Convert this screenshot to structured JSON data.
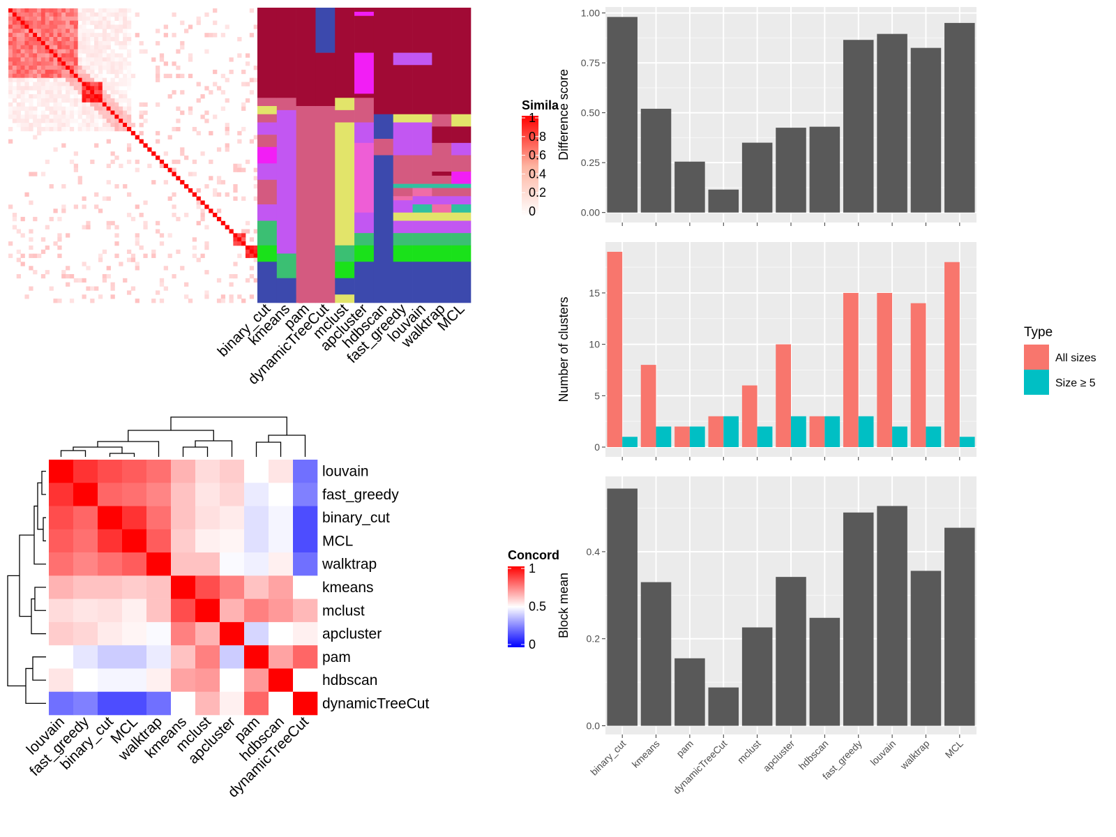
{
  "chart_data": [
    {
      "type": "heatmap",
      "id": "similarity",
      "legend": {
        "title": "Simila",
        "ticks": [
          "1",
          "0.8",
          "0.6",
          "0.4",
          "0.2",
          "0"
        ],
        "colors": [
          "#ffffff",
          "#ff0000"
        ]
      },
      "n_items": 72,
      "blocks": [
        [
          0,
          16
        ],
        [
          18,
          22
        ],
        [
          55,
          57
        ],
        [
          58,
          60
        ],
        [
          61,
          63
        ]
      ]
    },
    {
      "type": "heatmap",
      "id": "class-assignments",
      "methods": [
        "binary_cut",
        "kmeans",
        "pam",
        "dynamicTreeCut",
        "mclust",
        "apcluster",
        "hdbscan",
        "fast_greedy",
        "louvain",
        "walktrap",
        "MCL"
      ],
      "n_items": 72,
      "columns": [
        {
          "segments": [
            [
              0,
              22,
              "#a10a35"
            ],
            [
              22,
              24,
              "#d45a80"
            ],
            [
              24,
              26,
              "#e2e46a"
            ],
            [
              26,
              28,
              "#d45a80"
            ],
            [
              28,
              31,
              "#c257f2"
            ],
            [
              31,
              34,
              "#d45a80"
            ],
            [
              34,
              38,
              "#f21ef5"
            ],
            [
              38,
              42,
              "#c257f2"
            ],
            [
              42,
              48,
              "#d45a80"
            ],
            [
              48,
              52,
              "#c257f2"
            ],
            [
              52,
              58,
              "#3bbf73"
            ],
            [
              58,
              62,
              "#1ae11a"
            ],
            [
              62,
              72,
              "#3c49ad"
            ]
          ]
        },
        {
          "segments": [
            [
              0,
              22,
              "#a10a35"
            ],
            [
              22,
              25,
              "#d45a80"
            ],
            [
              25,
              60,
              "#c257f2"
            ],
            [
              60,
              66,
              "#3bbf73"
            ],
            [
              66,
              72,
              "#3c49ad"
            ]
          ]
        },
        {
          "segments": [
            [
              0,
              24,
              "#a10a35"
            ],
            [
              24,
              72,
              "#d45a80"
            ]
          ]
        },
        {
          "segments": [
            [
              0,
              11,
              "#3c49ad"
            ],
            [
              11,
              24,
              "#a10a35"
            ],
            [
              24,
              72,
              "#d45a80"
            ]
          ]
        },
        {
          "segments": [
            [
              0,
              22,
              "#a10a35"
            ],
            [
              22,
              25,
              "#e2e46a"
            ],
            [
              25,
              28,
              "#d45a80"
            ],
            [
              28,
              58,
              "#e2e46a"
            ],
            [
              58,
              62,
              "#3bbf73"
            ],
            [
              62,
              66,
              "#1ae11a"
            ],
            [
              66,
              70,
              "#3c49ad"
            ],
            [
              70,
              72,
              "#e2e46a"
            ]
          ]
        },
        {
          "segments": [
            [
              0,
              1,
              "#a10a35"
            ],
            [
              1,
              2,
              "#f21ef5"
            ],
            [
              2,
              11,
              "#a10a35"
            ],
            [
              11,
              21,
              "#f21ef5"
            ],
            [
              21,
              22,
              "#a10a35"
            ],
            [
              22,
              28,
              "#d45a80"
            ],
            [
              28,
              33,
              "#c257f2"
            ],
            [
              33,
              40,
              "#ee5ed6"
            ],
            [
              40,
              50,
              "#ee5ed6"
            ],
            [
              50,
              55,
              "#c257f2"
            ],
            [
              55,
              58,
              "#3bbf73"
            ],
            [
              58,
              62,
              "#1ae11a"
            ],
            [
              62,
              72,
              "#3c49ad"
            ]
          ]
        },
        {
          "segments": [
            [
              0,
              26,
              "#a10a35"
            ],
            [
              26,
              32,
              "#3c49ad"
            ],
            [
              32,
              36,
              "#d45a80"
            ],
            [
              36,
              72,
              "#3c49ad"
            ]
          ]
        },
        {
          "segments": [
            [
              0,
              11,
              "#a10a35"
            ],
            [
              11,
              14,
              "#c257f2"
            ],
            [
              14,
              26,
              "#a10a35"
            ],
            [
              26,
              28,
              "#e2e46a"
            ],
            [
              28,
              36,
              "#c257f2"
            ],
            [
              36,
              43,
              "#d45a80"
            ],
            [
              43,
              44,
              "#30c0a0"
            ],
            [
              44,
              46,
              "#d45a80"
            ],
            [
              46,
              47,
              "#f06ca7"
            ],
            [
              47,
              50,
              "#c257f2"
            ],
            [
              50,
              52,
              "#e2e46a"
            ],
            [
              52,
              55,
              "#c257f2"
            ],
            [
              55,
              58,
              "#3bbf73"
            ],
            [
              58,
              62,
              "#1ae11a"
            ],
            [
              62,
              72,
              "#3c49ad"
            ]
          ]
        },
        {
          "segments": [
            [
              0,
              11,
              "#a10a35"
            ],
            [
              11,
              14,
              "#c257f2"
            ],
            [
              14,
              26,
              "#a10a35"
            ],
            [
              26,
              28,
              "#e2e46a"
            ],
            [
              28,
              36,
              "#c257f2"
            ],
            [
              36,
              43,
              "#d45a80"
            ],
            [
              43,
              44,
              "#30c0a0"
            ],
            [
              44,
              46,
              "#f06ca7"
            ],
            [
              46,
              48,
              "#c257f2"
            ],
            [
              48,
              50,
              "#30c0a0"
            ],
            [
              50,
              52,
              "#e2e46a"
            ],
            [
              52,
              55,
              "#c257f2"
            ],
            [
              55,
              58,
              "#3bbf73"
            ],
            [
              58,
              62,
              "#1ae11a"
            ],
            [
              62,
              72,
              "#3c49ad"
            ]
          ]
        },
        {
          "segments": [
            [
              0,
              26,
              "#a10a35"
            ],
            [
              26,
              29,
              "#d45a80"
            ],
            [
              29,
              33,
              "#a10a35"
            ],
            [
              33,
              40,
              "#d45a80"
            ],
            [
              40,
              41,
              "#a10a35"
            ],
            [
              41,
              43,
              "#d45a80"
            ],
            [
              43,
              44,
              "#30c0a0"
            ],
            [
              44,
              46,
              "#d45a80"
            ],
            [
              46,
              48,
              "#c257f2"
            ],
            [
              48,
              50,
              "#f06ca7"
            ],
            [
              50,
              52,
              "#e2e46a"
            ],
            [
              52,
              55,
              "#c257f2"
            ],
            [
              55,
              58,
              "#3bbf73"
            ],
            [
              58,
              62,
              "#1ae11a"
            ],
            [
              62,
              72,
              "#3c49ad"
            ]
          ]
        },
        {
          "segments": [
            [
              0,
              26,
              "#a10a35"
            ],
            [
              26,
              29,
              "#e2e46a"
            ],
            [
              29,
              33,
              "#a10a35"
            ],
            [
              33,
              36,
              "#c257f2"
            ],
            [
              36,
              40,
              "#d45a80"
            ],
            [
              40,
              43,
              "#f21ef5"
            ],
            [
              43,
              44,
              "#30c0a0"
            ],
            [
              44,
              46,
              "#d45a80"
            ],
            [
              46,
              48,
              "#c257f2"
            ],
            [
              48,
              50,
              "#30c0a0"
            ],
            [
              50,
              52,
              "#e2e46a"
            ],
            [
              52,
              55,
              "#c257f2"
            ],
            [
              55,
              58,
              "#3bbf73"
            ],
            [
              58,
              62,
              "#1ae11a"
            ],
            [
              62,
              72,
              "#3c49ad"
            ]
          ]
        }
      ]
    },
    {
      "type": "heatmap",
      "id": "concordance",
      "legend": {
        "title": "Concord",
        "ticks": [
          "1",
          "0.5",
          "0"
        ],
        "colors": [
          "#0000ff",
          "#ffffff",
          "#ff0000"
        ]
      },
      "rows": [
        "louvain",
        "fast_greedy",
        "binary_cut",
        "MCL",
        "walktrap",
        "kmeans",
        "mclust",
        "apcluster",
        "pam",
        "hdbscan",
        "dynamicTreeCut"
      ],
      "columns": [
        "louvain",
        "fast_greedy",
        "binary_cut",
        "MCL",
        "walktrap",
        "kmeans",
        "mclust",
        "apcluster",
        "pam",
        "hdbscan",
        "dynamicTreeCut"
      ],
      "values": [
        [
          1.0,
          0.9,
          0.85,
          0.82,
          0.78,
          0.65,
          0.57,
          0.6,
          0.5,
          0.55,
          0.22
        ],
        [
          0.9,
          1.0,
          0.8,
          0.78,
          0.74,
          0.62,
          0.55,
          0.58,
          0.46,
          0.5,
          0.25
        ],
        [
          0.85,
          0.8,
          1.0,
          0.9,
          0.78,
          0.62,
          0.56,
          0.54,
          0.44,
          0.48,
          0.15
        ],
        [
          0.82,
          0.78,
          0.9,
          1.0,
          0.82,
          0.6,
          0.53,
          0.52,
          0.44,
          0.48,
          0.15
        ],
        [
          0.78,
          0.74,
          0.78,
          0.82,
          1.0,
          0.62,
          0.62,
          0.49,
          0.47,
          0.53,
          0.22
        ],
        [
          0.65,
          0.62,
          0.62,
          0.6,
          0.62,
          1.0,
          0.85,
          0.75,
          0.62,
          0.68,
          0.5
        ],
        [
          0.57,
          0.55,
          0.56,
          0.53,
          0.62,
          0.85,
          1.0,
          0.65,
          0.75,
          0.7,
          0.64
        ],
        [
          0.6,
          0.58,
          0.54,
          0.52,
          0.49,
          0.75,
          0.65,
          1.0,
          0.42,
          0.5,
          0.53
        ],
        [
          0.5,
          0.45,
          0.4,
          0.4,
          0.46,
          0.62,
          0.75,
          0.4,
          1.0,
          0.68,
          0.8
        ],
        [
          0.55,
          0.5,
          0.48,
          0.48,
          0.53,
          0.68,
          0.7,
          0.5,
          0.7,
          1.0,
          0.5
        ],
        [
          0.22,
          0.25,
          0.15,
          0.15,
          0.22,
          0.5,
          0.64,
          0.53,
          0.8,
          0.5,
          1.0
        ]
      ]
    },
    {
      "type": "bar",
      "id": "difference",
      "categories": [
        "binary_cut",
        "kmeans",
        "pam",
        "dynamicTreeCut",
        "mclust",
        "apcluster",
        "hdbscan",
        "fast_greedy",
        "louvain",
        "walktrap",
        "MCL"
      ],
      "values": [
        0.98,
        0.52,
        0.255,
        0.115,
        0.35,
        0.425,
        0.43,
        0.865,
        0.895,
        0.825,
        0.95
      ],
      "ylabel": "Difference score",
      "yticks": [
        "0.00",
        "0.25",
        "0.50",
        "0.75",
        "1.00"
      ],
      "ylim": [
        -0.05,
        1.03
      ]
    },
    {
      "type": "bar",
      "id": "nclusters",
      "categories": [
        "binary_cut",
        "kmeans",
        "pam",
        "dynamicTreeCut",
        "mclust",
        "apcluster",
        "hdbscan",
        "fast_greedy",
        "louvain",
        "walktrap",
        "MCL"
      ],
      "series": [
        {
          "name": "All sizes",
          "color": "#f8766d",
          "values": [
            19,
            8,
            2,
            3,
            6,
            10,
            3,
            15,
            15,
            14,
            18
          ]
        },
        {
          "name": "Size ≥ 5",
          "color": "#00bfc4",
          "values": [
            1,
            2,
            2,
            3,
            2,
            3,
            3,
            3,
            2,
            2,
            1
          ]
        }
      ],
      "ylabel": "Number of clusters",
      "yticks": [
        "0",
        "5",
        "10",
        "15"
      ],
      "ylim": [
        -0.95,
        19.95
      ],
      "legend_title": "Type",
      "legend_position": "right"
    },
    {
      "type": "bar",
      "id": "blockmean",
      "categories": [
        "binary_cut",
        "kmeans",
        "pam",
        "dynamicTreeCut",
        "mclust",
        "apcluster",
        "hdbscan",
        "fast_greedy",
        "louvain",
        "walktrap",
        "MCL"
      ],
      "values": [
        0.545,
        0.33,
        0.155,
        0.088,
        0.226,
        0.342,
        0.248,
        0.49,
        0.505,
        0.356,
        0.455
      ],
      "ylabel": "Block mean",
      "yticks": [
        "0.0",
        "0.2",
        "0.4"
      ],
      "ylim": [
        -0.02,
        0.573
      ]
    }
  ]
}
